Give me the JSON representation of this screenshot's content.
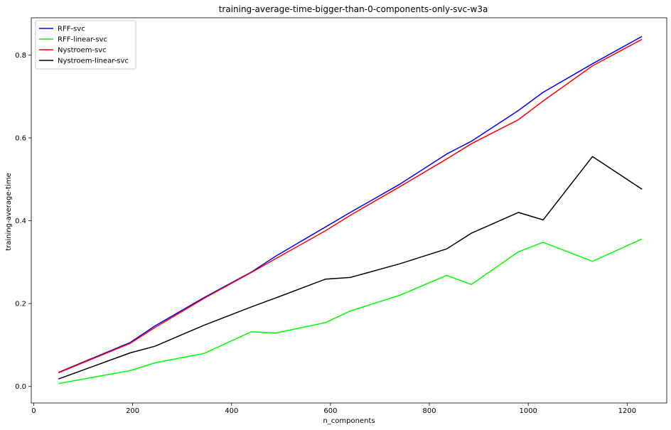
{
  "chart_data": {
    "type": "line",
    "title": "training-average-time-bigger-than-0-components-only-svc-w3a",
    "xlabel": "n_components",
    "ylabel": "training-average-time",
    "xlim": [
      -5,
      1280
    ],
    "ylim": [
      -0.04,
      0.89
    ],
    "xticks": [
      0,
      200,
      400,
      600,
      800,
      1000,
      1200
    ],
    "yticks": [
      0.0,
      0.2,
      0.4,
      0.6,
      0.8
    ],
    "xtick_labels": [
      "0",
      "200",
      "400",
      "600",
      "800",
      "1000",
      "1200"
    ],
    "ytick_labels": [
      "0.0",
      "0.2",
      "0.4",
      "0.6",
      "0.8"
    ],
    "grid": false,
    "legend_position": "top-left",
    "x": [
      50,
      195,
      245,
      345,
      440,
      490,
      590,
      640,
      740,
      835,
      885,
      980,
      1030,
      1130,
      1230
    ],
    "series": [
      {
        "name": "RFF-svc",
        "color": "#0000ff",
        "values": [
          0.034,
          0.106,
          0.146,
          0.215,
          0.276,
          0.315,
          0.385,
          0.42,
          0.488,
          0.561,
          0.592,
          0.666,
          0.71,
          0.779,
          0.845
        ]
      },
      {
        "name": "RFF-linear-svc",
        "color": "#00ff00",
        "values": [
          0.007,
          0.038,
          0.057,
          0.08,
          0.132,
          0.129,
          0.154,
          0.182,
          0.22,
          0.268,
          0.246,
          0.325,
          0.348,
          0.302,
          0.356
        ]
      },
      {
        "name": "Nystroem-svc",
        "color": "#ff0000",
        "values": [
          0.033,
          0.104,
          0.142,
          0.213,
          0.275,
          0.309,
          0.376,
          0.413,
          0.482,
          0.549,
          0.586,
          0.644,
          0.689,
          0.774,
          0.838
        ]
      },
      {
        "name": "Nystroem-linear-svc",
        "color": "#000000",
        "values": [
          0.018,
          0.081,
          0.097,
          0.148,
          0.192,
          0.214,
          0.259,
          0.263,
          0.296,
          0.332,
          0.37,
          0.42,
          0.402,
          0.555,
          0.476
        ]
      }
    ]
  }
}
